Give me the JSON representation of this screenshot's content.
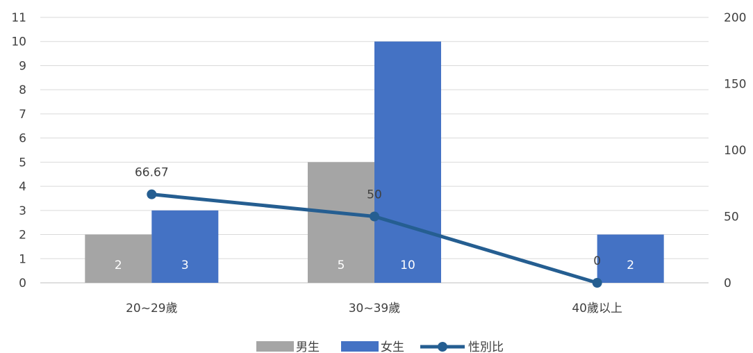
{
  "chart_data": {
    "type": "bar",
    "categories": [
      "20~29歲",
      "30~39歲",
      "40歲以上"
    ],
    "series": [
      {
        "name": "男生",
        "kind": "bar",
        "axis": "left",
        "color": "#a5a5a5",
        "values": [
          2,
          5,
          0
        ]
      },
      {
        "name": "女生",
        "kind": "bar",
        "axis": "left",
        "color": "#4472c4",
        "values": [
          3,
          10,
          2
        ]
      },
      {
        "name": "性別比",
        "kind": "line",
        "axis": "right",
        "color": "#255e91",
        "values": [
          66.67,
          50,
          0
        ]
      }
    ],
    "bar_labels": [
      [
        "2",
        "5",
        "0"
      ],
      [
        "3",
        "10",
        "2"
      ]
    ],
    "line_labels": [
      "66.67",
      "50",
      "0"
    ],
    "y_left": {
      "min": 0,
      "max": 11,
      "ticks": [
        "0",
        "1",
        "2",
        "3",
        "4",
        "5",
        "6",
        "7",
        "8",
        "9",
        "10",
        "11"
      ]
    },
    "y_right": {
      "min": 0,
      "max": 200,
      "ticks": [
        "0",
        "50",
        "100",
        "150",
        "200"
      ]
    },
    "grid": true,
    "legend_position": "bottom"
  }
}
